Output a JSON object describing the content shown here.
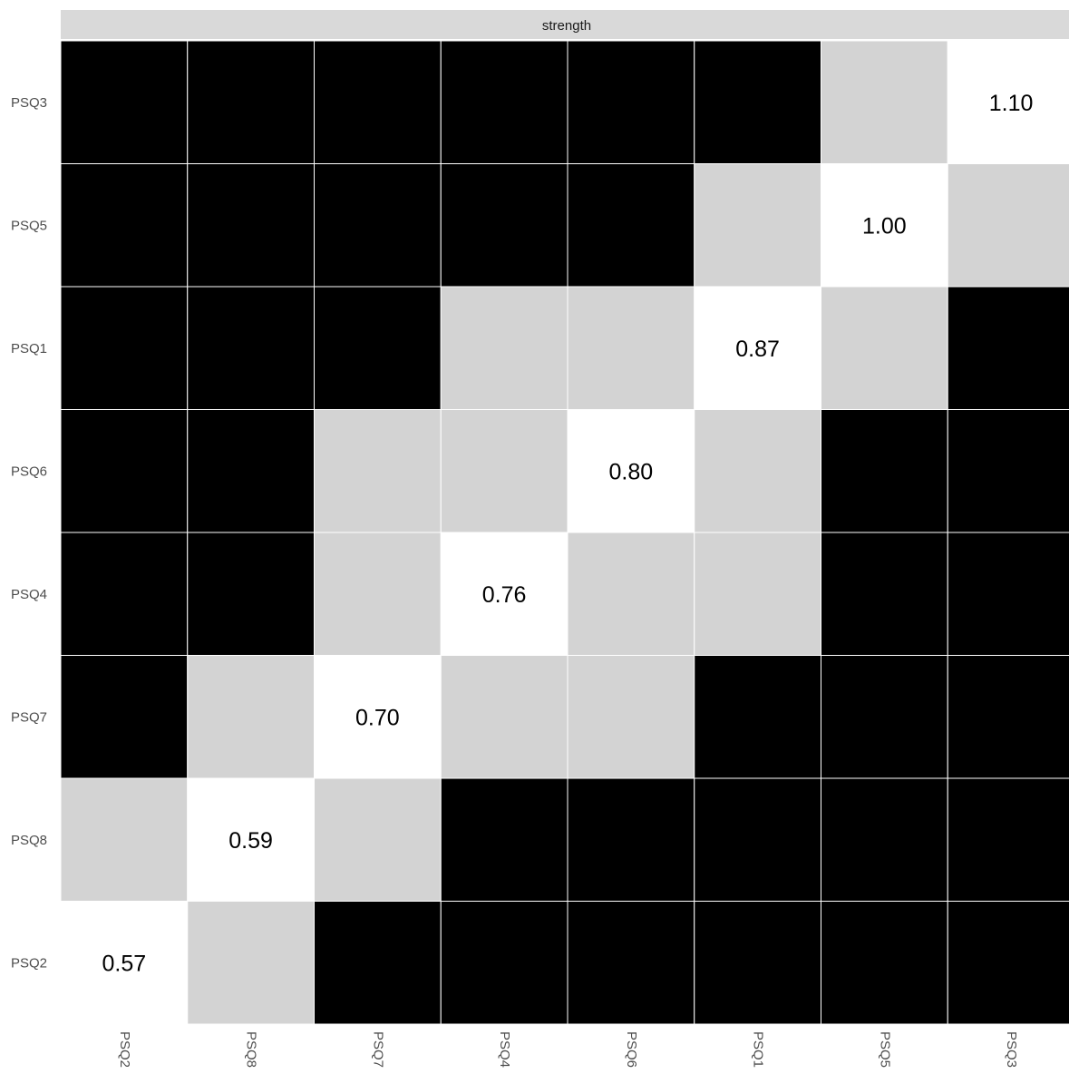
{
  "chart_data": {
    "type": "heatmap",
    "facet_label": "strength",
    "x_categories": [
      "PSQ2",
      "PSQ8",
      "PSQ7",
      "PSQ4",
      "PSQ6",
      "PSQ1",
      "PSQ5",
      "PSQ3"
    ],
    "y_categories_top_to_bottom": [
      "PSQ3",
      "PSQ5",
      "PSQ1",
      "PSQ6",
      "PSQ4",
      "PSQ7",
      "PSQ8",
      "PSQ2"
    ],
    "cell_rows_top_to_bottom": [
      [
        "black",
        "black",
        "black",
        "black",
        "black",
        "black",
        "grey",
        "white"
      ],
      [
        "black",
        "black",
        "black",
        "black",
        "black",
        "grey",
        "white",
        "grey"
      ],
      [
        "black",
        "black",
        "black",
        "grey",
        "grey",
        "white",
        "grey",
        "black"
      ],
      [
        "black",
        "black",
        "grey",
        "grey",
        "white",
        "grey",
        "black",
        "black"
      ],
      [
        "black",
        "black",
        "grey",
        "white",
        "grey",
        "grey",
        "black",
        "black"
      ],
      [
        "black",
        "grey",
        "white",
        "grey",
        "grey",
        "black",
        "black",
        "black"
      ],
      [
        "grey",
        "white",
        "grey",
        "black",
        "black",
        "black",
        "black",
        "black"
      ],
      [
        "white",
        "grey",
        "black",
        "black",
        "black",
        "black",
        "black",
        "black"
      ]
    ],
    "diagonal_values": [
      {
        "node": "PSQ2",
        "value": "0.57"
      },
      {
        "node": "PSQ8",
        "value": "0.59"
      },
      {
        "node": "PSQ7",
        "value": "0.70"
      },
      {
        "node": "PSQ4",
        "value": "0.76"
      },
      {
        "node": "PSQ6",
        "value": "0.80"
      },
      {
        "node": "PSQ1",
        "value": "0.87"
      },
      {
        "node": "PSQ5",
        "value": "1.00"
      },
      {
        "node": "PSQ3",
        "value": "1.10"
      }
    ],
    "fill_colors": {
      "black": "#000000",
      "grey": "#d3d3d3",
      "white": "#ffffff"
    },
    "strip_color": "#d9d9d9",
    "gridline_color": "#ffffff"
  }
}
